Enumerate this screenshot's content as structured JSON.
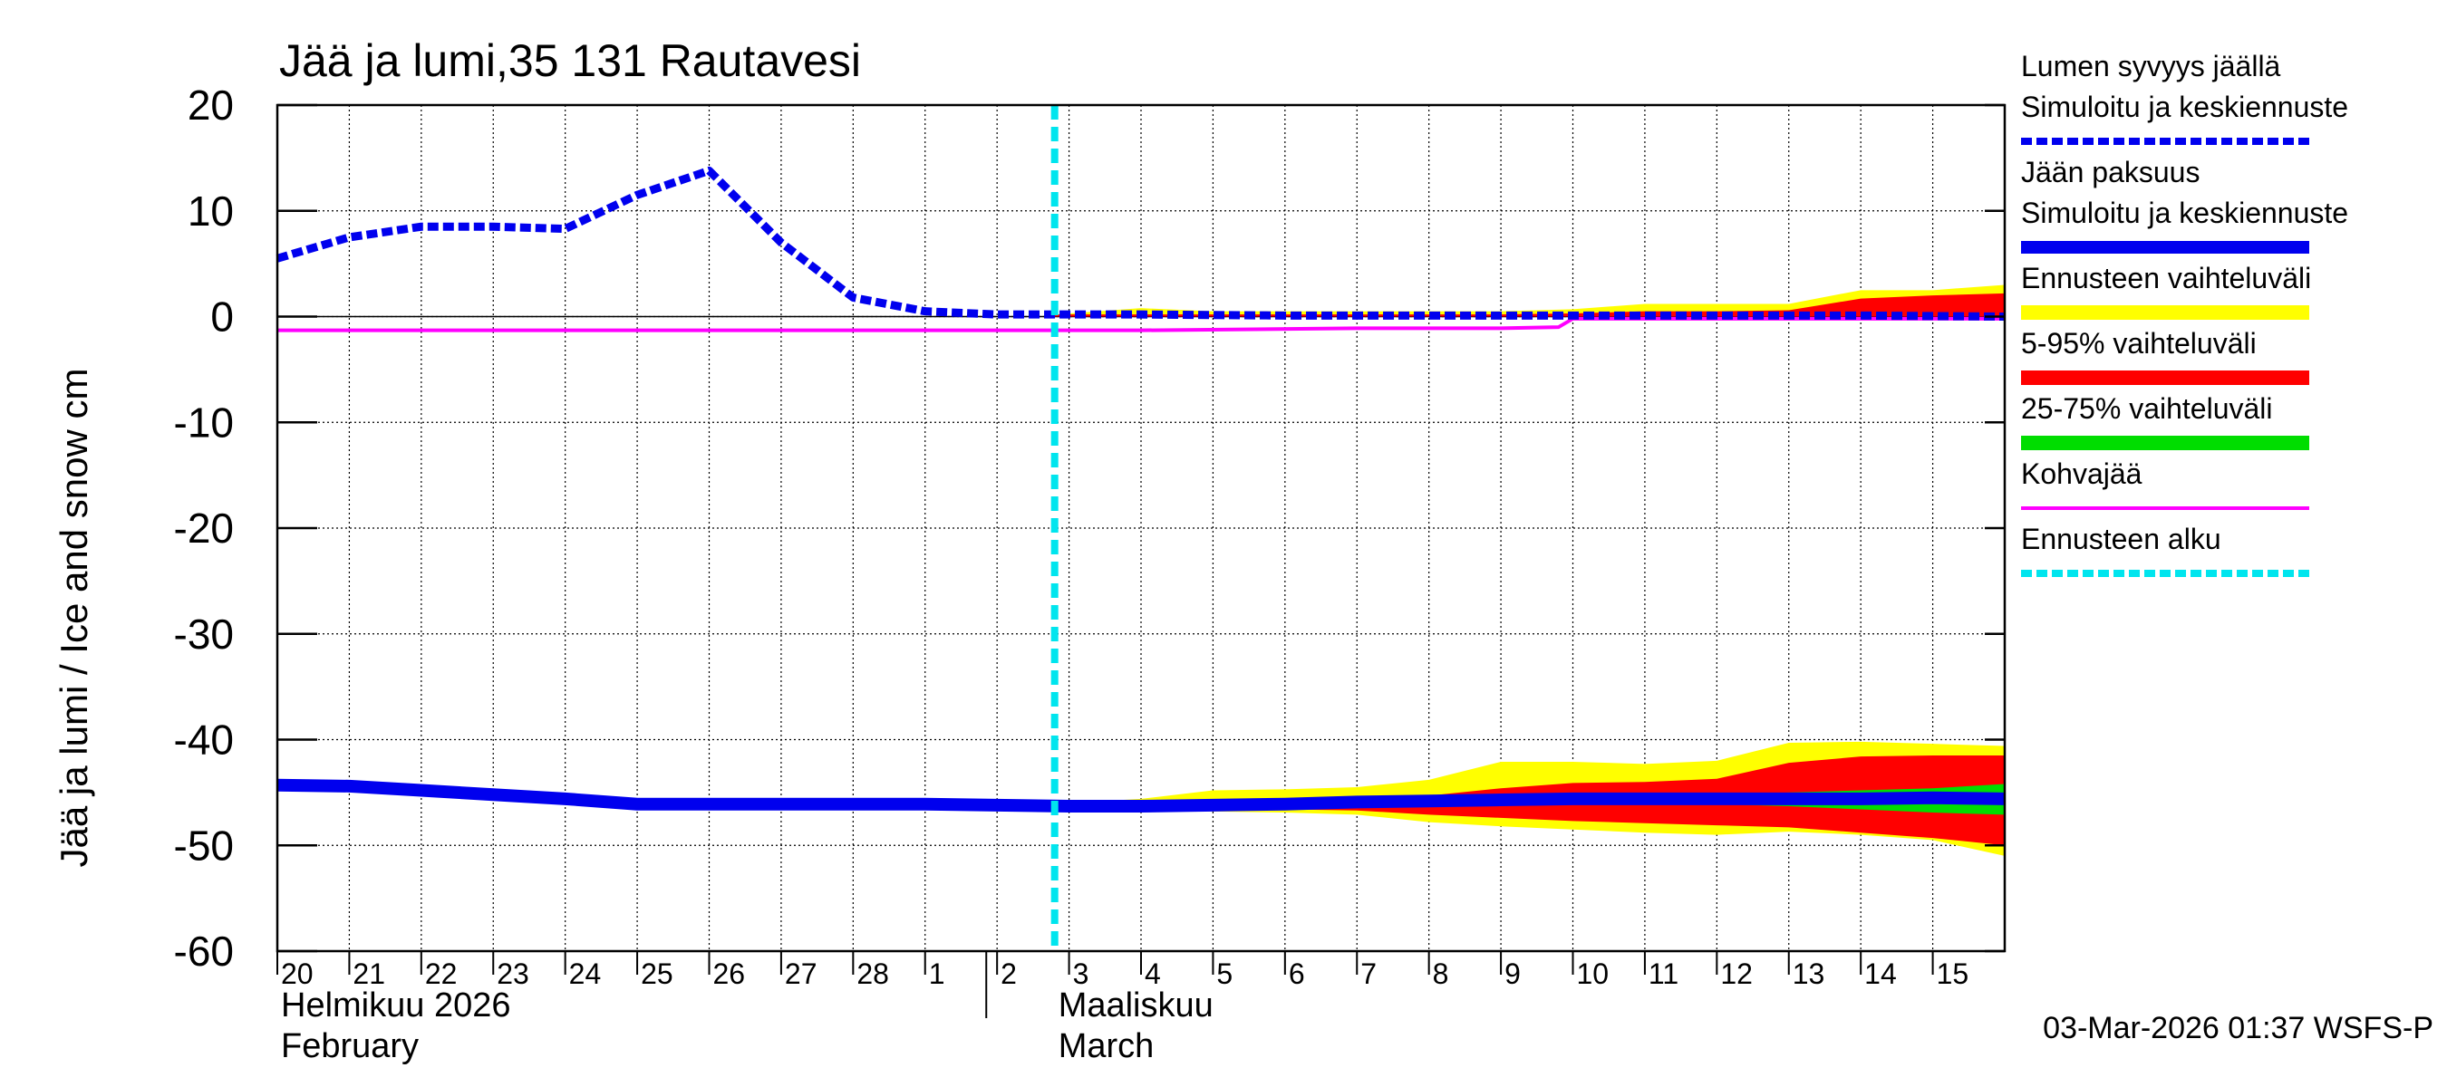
{
  "chart_data": {
    "type": "area",
    "title": "Jää ja lumi,35 131 Rautavesi",
    "ylabel": "Jää ja lumi / Ice and snow    cm",
    "ylim": [
      -60,
      20
    ],
    "yticks": [
      20,
      10,
      0,
      -10,
      -20,
      -30,
      -40,
      -50,
      -60
    ],
    "x_day_labels": [
      "20",
      "21",
      "22",
      "23",
      "24",
      "25",
      "26",
      "27",
      "28",
      "1",
      "2",
      "3",
      "4",
      "5",
      "6",
      "7",
      "8",
      "9",
      "10",
      "11",
      "12",
      "13",
      "14",
      "15"
    ],
    "month_labels": [
      {
        "fi": "Helmikuu  2026",
        "en": "February"
      },
      {
        "fi": "Maaliskuu",
        "en": "March"
      }
    ],
    "forecast_start_day": 10.8,
    "legend": [
      {
        "id": "snow",
        "lines": [
          "Lumen syvyys jäällä",
          "Simuloitu ja keskiennuste"
        ],
        "color": "#0000ee",
        "style": "dashed"
      },
      {
        "id": "ice",
        "lines": [
          "Jään paksuus",
          "Simuloitu ja keskiennuste"
        ],
        "color": "#0000ee",
        "style": "solid"
      },
      {
        "id": "range",
        "lines": [
          "Ennusteen vaihteluväli"
        ],
        "color": "#ffff00",
        "style": "band"
      },
      {
        "id": "p5_95",
        "lines": [
          "5-95% vaihteluväli"
        ],
        "color": "#ff0000",
        "style": "band"
      },
      {
        "id": "p25_75",
        "lines": [
          "25-75% vaihteluväli"
        ],
        "color": "#00dd00",
        "style": "band"
      },
      {
        "id": "slush",
        "lines": [
          "Kohvajää"
        ],
        "color": "#ff00ff",
        "style": "solid"
      },
      {
        "id": "fstart",
        "lines": [
          "Ennusteen alku"
        ],
        "color": "#00e5ee",
        "style": "dashed"
      }
    ],
    "series": [
      {
        "name": "Lumen syvyys jäällä",
        "x": [
          0,
          1,
          2,
          3,
          4,
          5,
          6,
          7,
          8,
          9,
          10,
          10.8,
          12,
          14,
          16,
          18,
          20,
          22,
          24
        ],
        "values": [
          5.5,
          7.5,
          8.5,
          8.5,
          8.3,
          11.5,
          13.8,
          7,
          1.8,
          0.5,
          0.2,
          0.2,
          0.2,
          0.1,
          0.1,
          0.1,
          0.1,
          0.1,
          0
        ]
      },
      {
        "name": "Jään paksuus",
        "x": [
          0,
          1,
          2,
          3,
          4,
          5,
          6,
          7,
          8,
          9,
          10,
          11,
          12,
          13,
          14,
          15,
          16,
          17,
          18,
          19,
          20,
          21,
          22,
          23,
          24
        ],
        "values": [
          -44.3,
          -44.4,
          -44.8,
          -45.2,
          -45.6,
          -46.1,
          -46.1,
          -46.1,
          -46.1,
          -46.1,
          -46.2,
          -46.3,
          -46.3,
          -46.2,
          -46.1,
          -45.9,
          -45.8,
          -45.7,
          -45.6,
          -45.6,
          -45.6,
          -45.6,
          -45.6,
          -45.5,
          -45.6
        ]
      },
      {
        "name": "Kohvajää",
        "x": [
          0,
          12,
          15,
          16,
          17,
          17.8,
          18,
          24
        ],
        "values": [
          -1.3,
          -1.3,
          -1.1,
          -1.1,
          -1.1,
          -1.0,
          -0.2,
          -0.2
        ]
      }
    ],
    "bands": {
      "x": [
        10.8,
        11,
        12,
        13,
        14,
        15,
        16,
        17,
        18,
        19,
        20,
        21,
        22,
        23,
        24
      ],
      "range_upper": [
        0.2,
        0.3,
        0.8,
        0.5,
        0.5,
        0.5,
        0.5,
        0.5,
        0.7,
        1.2,
        1.2,
        1.2,
        2.5,
        2.5,
        3.0
      ],
      "range_lower": [
        0,
        0,
        0,
        0,
        0,
        0,
        0,
        0,
        0,
        0,
        0,
        0,
        0,
        0,
        0
      ],
      "p95_upper": [
        0.2,
        0.2,
        0.2,
        0.2,
        0.2,
        0.2,
        0.2,
        0.2,
        0.3,
        0.5,
        0.5,
        0.6,
        1.7,
        2.0,
        2.2
      ],
      "ice_range_top": [
        -46.1,
        -46.0,
        -45.6,
        -44.8,
        -44.7,
        -44.5,
        -43.8,
        -42.1,
        -42.1,
        -42.3,
        -42.0,
        -40.3,
        -40.2,
        -40.4,
        -40.6
      ],
      "ice_range_bottom": [
        -46.4,
        -46.5,
        -46.6,
        -46.8,
        -46.9,
        -47.1,
        -47.8,
        -48.2,
        -48.5,
        -48.8,
        -49.0,
        -48.7,
        -49.0,
        -49.5,
        -51.0
      ],
      "ice_p95_top": [
        -46.1,
        -46.1,
        -46.0,
        -45.8,
        -45.8,
        -45.5,
        -45.3,
        -44.6,
        -44.1,
        -44.0,
        -43.7,
        -42.2,
        -41.6,
        -41.5,
        -41.5
      ],
      "ice_p95_bottom": [
        -46.3,
        -46.3,
        -46.4,
        -46.5,
        -46.6,
        -46.7,
        -47.1,
        -47.4,
        -47.7,
        -47.9,
        -48.1,
        -48.3,
        -48.8,
        -49.3,
        -50.0
      ],
      "ice_p75_top": [
        -46.2,
        -46.2,
        -46.2,
        -46.1,
        -46.0,
        -45.8,
        -45.7,
        -45.4,
        -45.3,
        -45.3,
        -45.2,
        -45.0,
        -44.8,
        -44.6,
        -44.2
      ],
      "ice_p75_bottom": [
        -46.2,
        -46.3,
        -46.3,
        -46.3,
        -46.3,
        -46.2,
        -46.1,
        -46.0,
        -46.0,
        -46.1,
        -46.1,
        -46.3,
        -46.6,
        -46.9,
        -47.1
      ]
    }
  },
  "footer_timestamp": "03-Mar-2026 01:37 WSFS-P"
}
